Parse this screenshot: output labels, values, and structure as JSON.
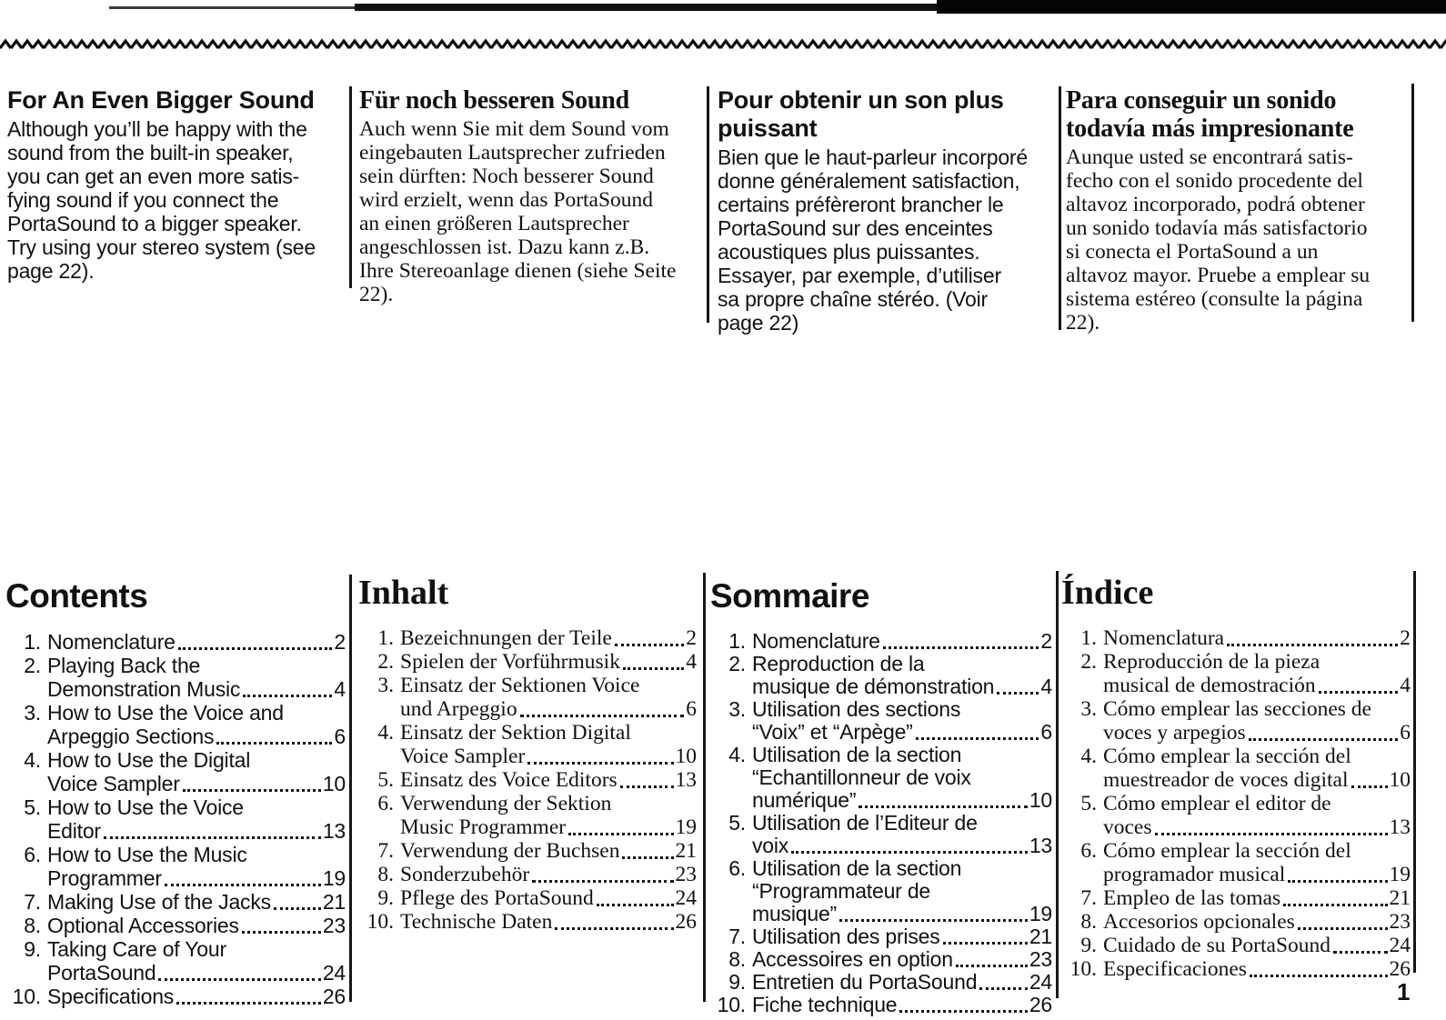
{
  "colors": {
    "ink": "#111111",
    "paper": "#ffffff"
  },
  "page_number": "1",
  "articles": [
    {
      "heading": "For An Even Bigger Sound",
      "body": "Although you’ll be happy with the\nsound from the built-in speaker,\nyou can get an even more satis-\nfying sound if you connect the\nPortaSound to a bigger speaker.\nTry using your stereo system (see\npage 22)."
    },
    {
      "heading": "Für noch besseren Sound",
      "body": "Auch wenn Sie mit dem Sound vom\neingebauten Lautsprecher zufrieden\nsein dürften: Noch besserer Sound\nwird erzielt, wenn das PortaSound\nan einen größeren Lautsprecher\nangeschlossen ist. Dazu kann z.B.\nIhre Stereoanlage dienen (siehe Seite\n22)."
    },
    {
      "heading": "Pour obtenir un son plus\npuissant",
      "body": "Bien que le haut-parleur incorporé\ndonne généralement satisfaction,\ncertains préfèreront brancher le\nPortaSound sur des enceintes\nacoustiques plus puissantes.\nEssayer, par exemple, d’utiliser\nsa propre chaîne stéréo. (Voir\npage 22)"
    },
    {
      "heading": "Para conseguir un sonido\ntodavía más impresionante",
      "body": "Aunque usted se encontrará satis-\nfecho con el sonido procedente del\naltavoz incorporado, podrá obtener\nun sonido todavía más satisfactorio\nsi conecta el PortaSound a un\naltavoz mayor. Pruebe a emplear su\nsistema estéreo (consulte la página\n22)."
    }
  ],
  "toc": [
    {
      "title": "Contents",
      "items": [
        {
          "num": "1.",
          "lines": [
            {
              "text": "Nomenclature",
              "page": "2"
            }
          ]
        },
        {
          "num": "2.",
          "lines": [
            {
              "text": "Playing Back the",
              "page": ""
            },
            {
              "text": "Demonstration Music",
              "page": "4"
            }
          ]
        },
        {
          "num": "3.",
          "lines": [
            {
              "text": "How to Use the Voice and",
              "page": ""
            },
            {
              "text": "Arpeggio Sections",
              "page": "6"
            }
          ]
        },
        {
          "num": "4.",
          "lines": [
            {
              "text": "How to Use the Digital",
              "page": ""
            },
            {
              "text": "Voice Sampler",
              "page": "10"
            }
          ]
        },
        {
          "num": "5.",
          "lines": [
            {
              "text": "How to Use the Voice",
              "page": ""
            },
            {
              "text": "Editor",
              "page": "13"
            }
          ]
        },
        {
          "num": "6.",
          "lines": [
            {
              "text": "How to Use the Music",
              "page": ""
            },
            {
              "text": "Programmer",
              "page": "19"
            }
          ]
        },
        {
          "num": "7.",
          "lines": [
            {
              "text": "Making Use of the Jacks",
              "page": "21"
            }
          ]
        },
        {
          "num": "8.",
          "lines": [
            {
              "text": "Optional Accessories",
              "page": "23"
            }
          ]
        },
        {
          "num": "9.",
          "lines": [
            {
              "text": "Taking Care of Your",
              "page": ""
            },
            {
              "text": "PortaSound",
              "page": "24"
            }
          ]
        },
        {
          "num": "10.",
          "lines": [
            {
              "text": "Specifications",
              "page": "26"
            }
          ]
        }
      ]
    },
    {
      "title": "Inhalt",
      "items": [
        {
          "num": "1.",
          "lines": [
            {
              "text": "Bezeichnungen der Teile",
              "page": "2"
            }
          ]
        },
        {
          "num": "2.",
          "lines": [
            {
              "text": "Spielen der Vorführmusik",
              "page": "4"
            }
          ]
        },
        {
          "num": "3.",
          "lines": [
            {
              "text": "Einsatz der Sektionen Voice",
              "page": ""
            },
            {
              "text": "und Arpeggio",
              "page": "6"
            }
          ]
        },
        {
          "num": "4.",
          "lines": [
            {
              "text": "Einsatz der Sektion Digital",
              "page": ""
            },
            {
              "text": "Voice Sampler",
              "page": "10"
            }
          ]
        },
        {
          "num": "5.",
          "lines": [
            {
              "text": "Einsatz des Voice Editors",
              "page": "13"
            }
          ]
        },
        {
          "num": "6.",
          "lines": [
            {
              "text": "Verwendung der Sektion",
              "page": ""
            },
            {
              "text": "Music Programmer",
              "page": "19"
            }
          ]
        },
        {
          "num": "7.",
          "lines": [
            {
              "text": "Verwendung der Buchsen",
              "page": "21"
            }
          ]
        },
        {
          "num": "8.",
          "lines": [
            {
              "text": "Sonderzubehör",
              "page": "23"
            }
          ]
        },
        {
          "num": "9.",
          "lines": [
            {
              "text": "Pflege des PortaSound",
              "page": "24"
            }
          ]
        },
        {
          "num": "10.",
          "lines": [
            {
              "text": "Technische Daten",
              "page": "26"
            }
          ]
        }
      ]
    },
    {
      "title": "Sommaire",
      "items": [
        {
          "num": "1.",
          "lines": [
            {
              "text": "Nomenclature",
              "page": "2"
            }
          ]
        },
        {
          "num": "2.",
          "lines": [
            {
              "text": "Reproduction de la",
              "page": ""
            },
            {
              "text": "musique de démonstration",
              "page": "4"
            }
          ]
        },
        {
          "num": "3.",
          "lines": [
            {
              "text": "Utilisation des sections",
              "page": ""
            },
            {
              "text": "“Voix” et “Arpège”",
              "page": "6"
            }
          ]
        },
        {
          "num": "4.",
          "lines": [
            {
              "text": "Utilisation de la section",
              "page": ""
            },
            {
              "text": "“Echantillonneur de voix",
              "page": ""
            },
            {
              "text": "numérique”",
              "page": "10"
            }
          ]
        },
        {
          "num": "5.",
          "lines": [
            {
              "text": "Utilisation de l’Editeur de",
              "page": ""
            },
            {
              "text": "voix",
              "page": "13"
            }
          ]
        },
        {
          "num": "6.",
          "lines": [
            {
              "text": "Utilisation de la section",
              "page": ""
            },
            {
              "text": "“Programmateur de",
              "page": ""
            },
            {
              "text": "musique”",
              "page": "19"
            }
          ]
        },
        {
          "num": "7.",
          "lines": [
            {
              "text": "Utilisation des prises",
              "page": "21"
            }
          ]
        },
        {
          "num": "8.",
          "lines": [
            {
              "text": "Accessoires en option",
              "page": "23"
            }
          ]
        },
        {
          "num": "9.",
          "lines": [
            {
              "text": "Entretien du PortaSound",
              "page": "24"
            }
          ]
        },
        {
          "num": "10.",
          "lines": [
            {
              "text": "Fiche technique",
              "page": "26"
            }
          ]
        }
      ]
    },
    {
      "title": "Índice",
      "items": [
        {
          "num": "1.",
          "lines": [
            {
              "text": "Nomenclatura",
              "page": "2"
            }
          ]
        },
        {
          "num": "2.",
          "lines": [
            {
              "text": "Reproducción de la pieza",
              "page": ""
            },
            {
              "text": "musical de demostración",
              "page": "4"
            }
          ]
        },
        {
          "num": "3.",
          "lines": [
            {
              "text": "Cómo emplear las secciones de",
              "page": ""
            },
            {
              "text": "voces y arpegios",
              "page": "6"
            }
          ]
        },
        {
          "num": "4.",
          "lines": [
            {
              "text": "Cómo emplear la sección del",
              "page": ""
            },
            {
              "text": "muestreador de voces digital",
              "page": "10"
            }
          ]
        },
        {
          "num": "5.",
          "lines": [
            {
              "text": "Cómo emplear el editor de",
              "page": ""
            },
            {
              "text": "voces",
              "page": "13"
            }
          ]
        },
        {
          "num": "6.",
          "lines": [
            {
              "text": "Cómo emplear la sección del",
              "page": ""
            },
            {
              "text": "programador musical",
              "page": "19"
            }
          ]
        },
        {
          "num": "7.",
          "lines": [
            {
              "text": "Empleo de las tomas",
              "page": "21"
            }
          ]
        },
        {
          "num": "8.",
          "lines": [
            {
              "text": "Accesorios opcionales",
              "page": "23"
            }
          ]
        },
        {
          "num": "9.",
          "lines": [
            {
              "text": "Cuidado de su PortaSound",
              "page": "24"
            }
          ]
        },
        {
          "num": "10.",
          "lines": [
            {
              "text": "Especificaciones",
              "page": "26"
            }
          ]
        }
      ]
    }
  ]
}
